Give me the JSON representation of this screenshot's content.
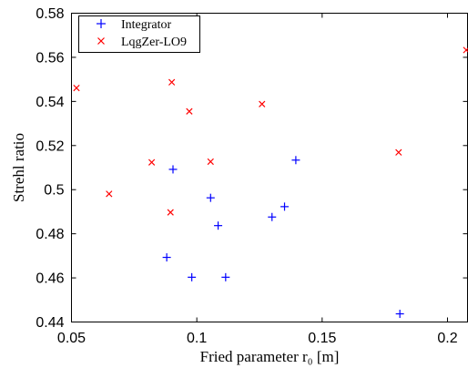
{
  "chart_data": {
    "type": "scatter",
    "xlabel": "Fried parameter r₀ [m]",
    "ylabel": "Strehl ratio",
    "xlim": [
      0.05,
      0.208
    ],
    "ylim": [
      0.44,
      0.58
    ],
    "xticks": [
      0.05,
      0.1,
      0.15,
      0.2
    ],
    "xtick_labels": [
      "0.05",
      "0.1",
      "0.15",
      "0.2"
    ],
    "yticks": [
      0.44,
      0.46,
      0.48,
      0.5,
      0.52,
      0.54,
      0.56,
      0.58
    ],
    "ytick_labels": [
      "0.44",
      "0.46",
      "0.48",
      "0.5",
      "0.52",
      "0.54",
      "0.56",
      "0.58"
    ],
    "grid": false,
    "legend_position": "top-left",
    "series": [
      {
        "name": "Integrator",
        "marker": "plus",
        "color": "#0000ff",
        "x": [
          0.088,
          0.0905,
          0.098,
          0.1055,
          0.1085,
          0.1115,
          0.13,
          0.135,
          0.1395,
          0.181
        ],
        "y": [
          0.4693,
          0.5092,
          0.4603,
          0.4963,
          0.4837,
          0.4603,
          0.4876,
          0.4923,
          0.5134,
          0.4437
        ]
      },
      {
        "name": "LqgZer-LO9",
        "marker": "x",
        "color": "#ff0000",
        "x": [
          0.052,
          0.065,
          0.082,
          0.0895,
          0.09,
          0.097,
          0.1055,
          0.126,
          0.1805,
          0.2075
        ],
        "y": [
          0.5461,
          0.4981,
          0.5124,
          0.4897,
          0.5487,
          0.5355,
          0.5127,
          0.5388,
          0.5169,
          0.5633
        ]
      }
    ]
  }
}
